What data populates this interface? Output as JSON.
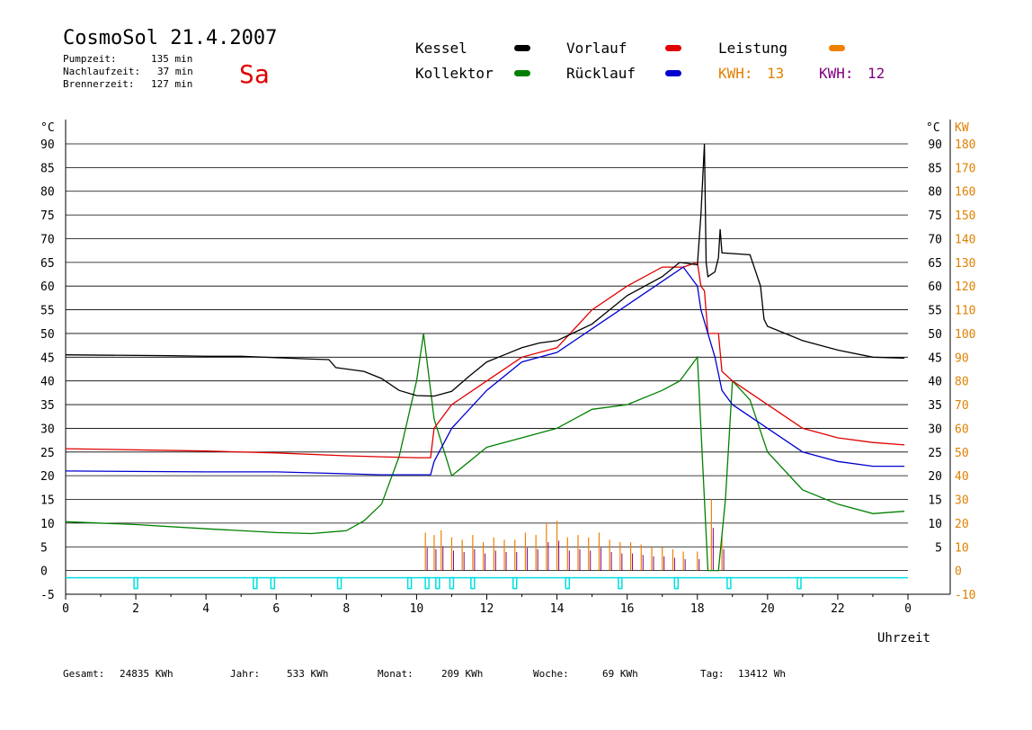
{
  "header": {
    "title": "CosmoSol 21.4.2007",
    "weekday": "Sa",
    "info": [
      {
        "label": "Pumpzeit:",
        "value": "135 min"
      },
      {
        "label": "Nachlaufzeit:",
        "value": "37 min"
      },
      {
        "label": "Brennerzeit:",
        "value": "127 min"
      }
    ]
  },
  "legend": {
    "kessel": "Kessel",
    "kollektor": "Kollektor",
    "vorlauf": "Vorlauf",
    "ruecklauf": "Rücklauf",
    "leistung": "Leistung",
    "kwh1_label": "KWH:",
    "kwh1_value": "13",
    "kwh2_label": "KWH:",
    "kwh2_value": "12"
  },
  "footer": {
    "gesamt_label": "Gesamt:",
    "gesamt_value": "24835 KWh",
    "jahr_label": "Jahr:",
    "jahr_value": "533 KWh",
    "monat_label": "Monat:",
    "monat_value": "209 KWh",
    "woche_label": "Woche:",
    "woche_value": "69 KWh",
    "tag_label": "Tag:",
    "tag_value": "13412 Wh"
  },
  "colors": {
    "kessel": "#000000",
    "kollektor": "#008000",
    "vorlauf": "#e00000",
    "ruecklauf": "#0000d0",
    "leistung": "#f08000",
    "kwh2": "#800080",
    "pump": "#00e0e0",
    "right_axis": "#e08000"
  },
  "chart_data": {
    "type": "line",
    "xlabel": "Uhrzeit",
    "ylabel_left": "°C",
    "ylabel_right_1": "°C",
    "ylabel_right_2": "KW",
    "xlim": [
      0,
      24
    ],
    "ylim": [
      -5,
      90
    ],
    "y2lim": [
      -10,
      180
    ],
    "x_ticks": [
      "0",
      "2",
      "4",
      "6",
      "8",
      "10",
      "12",
      "14",
      "16",
      "18",
      "20",
      "22",
      "0"
    ],
    "y_ticks": [
      -5,
      0,
      5,
      10,
      15,
      20,
      25,
      30,
      35,
      40,
      45,
      50,
      55,
      60,
      65,
      70,
      75,
      80,
      85,
      90
    ],
    "y_ticks_right": [
      5,
      10,
      15,
      20,
      25,
      30,
      35,
      40,
      45,
      50,
      55,
      60,
      65,
      70,
      75,
      80,
      85,
      90
    ],
    "y2_ticks": [
      -10,
      0,
      10,
      20,
      30,
      40,
      50,
      60,
      70,
      80,
      90,
      100,
      110,
      120,
      130,
      140,
      150,
      160,
      170,
      180
    ],
    "grid": true,
    "series": [
      {
        "name": "Kessel",
        "key": "kessel",
        "x": [
          0,
          3,
          4,
          5,
          7,
          7.5,
          7.7,
          8.5,
          9,
          9.5,
          10,
          10.5,
          11,
          11.5,
          12,
          12.5,
          13,
          13.5,
          14,
          15,
          16,
          17,
          17.5,
          18,
          18.1,
          18.2,
          18.25,
          18.3,
          18.5,
          18.6,
          18.65,
          18.7,
          19.5,
          19.8,
          19.9,
          20,
          20.5,
          21,
          21.5,
          22,
          23,
          23.9
        ],
        "y": [
          45.5,
          45.3,
          45.2,
          45.2,
          44.6,
          44.5,
          42.8,
          42,
          40.5,
          38,
          36.9,
          36.8,
          37.8,
          41,
          44,
          45.5,
          47,
          48,
          48.5,
          52,
          58,
          62,
          65,
          64.5,
          75,
          90,
          65,
          62,
          63,
          66,
          72,
          67,
          66.6,
          60,
          53,
          51.5,
          50,
          48.5,
          47.5,
          46.5,
          45,
          44.8
        ]
      },
      {
        "name": "Kollektor",
        "key": "kollektor",
        "x": [
          0,
          2,
          4,
          6,
          7,
          8,
          8.5,
          9,
          9.5,
          10,
          10.2,
          10.5,
          11,
          12,
          13,
          14,
          15,
          16,
          17,
          17.5,
          18,
          18.1,
          18.3,
          18.5,
          18.6,
          18.8,
          19,
          19.5,
          20,
          21,
          22,
          23,
          23.9
        ],
        "y": [
          10.3,
          9.7,
          8.8,
          8,
          7.8,
          8.4,
          10.5,
          14,
          24,
          40,
          50,
          32,
          20,
          26,
          28,
          30,
          34,
          35,
          38,
          40,
          45,
          30,
          0,
          0,
          0,
          15,
          40,
          36,
          25,
          17,
          14,
          12,
          12.5
        ]
      },
      {
        "name": "Vorlauf",
        "key": "vorlauf",
        "x": [
          0,
          4,
          6,
          8,
          9,
          10,
          10.4,
          10.5,
          11,
          12,
          13,
          14,
          15,
          16,
          17,
          17.6,
          18,
          18.1,
          18.2,
          18.3,
          18.6,
          18.7,
          19,
          20,
          21,
          22,
          23,
          23.9
        ],
        "y": [
          25.7,
          25.2,
          24.8,
          24.2,
          24,
          23.8,
          23.8,
          30,
          35,
          40,
          45,
          47,
          55,
          60,
          64,
          64,
          65,
          60,
          59,
          50,
          50,
          42,
          40,
          35,
          30,
          28,
          27,
          26.5
        ]
      },
      {
        "name": "Rücklauf",
        "key": "ruecklauf",
        "x": [
          0,
          4,
          6,
          8,
          9,
          10,
          10.4,
          10.5,
          11,
          12,
          13,
          14,
          15,
          16,
          17,
          17.6,
          18,
          18.1,
          18.3,
          18.5,
          18.7,
          19,
          20,
          21,
          22,
          23,
          23.9
        ],
        "y": [
          21,
          20.8,
          20.8,
          20.4,
          20.2,
          20.2,
          20.2,
          23,
          30,
          38,
          44,
          46,
          51,
          56,
          61,
          64,
          60,
          55,
          50,
          45,
          38,
          35,
          30,
          25,
          23,
          22,
          22
        ]
      }
    ],
    "leistung_events_h": [
      10.25,
      10.5,
      10.7,
      11,
      11.3,
      11.6,
      11.9,
      12.2,
      12.5,
      12.8,
      13.1,
      13.4,
      13.7,
      14,
      14.3,
      14.6,
      14.9,
      15.2,
      15.5,
      15.8,
      16.1,
      16.4,
      16.7,
      17,
      17.3,
      17.6,
      18,
      18.4,
      18.7
    ],
    "leistung_peaks_kw": [
      16,
      15,
      17,
      14,
      13,
      15,
      12,
      14,
      13,
      13,
      16,
      15,
      20,
      21,
      14,
      15,
      14,
      16,
      13,
      12,
      12,
      11,
      10,
      10,
      9,
      8,
      8,
      30,
      15
    ],
    "pump_events_h": [
      2,
      5.4,
      5.9,
      7.8,
      9.8,
      10.3,
      10.6,
      11,
      11.6,
      12.8,
      14.3,
      15.8,
      17.4,
      18.9,
      20.9
    ]
  }
}
